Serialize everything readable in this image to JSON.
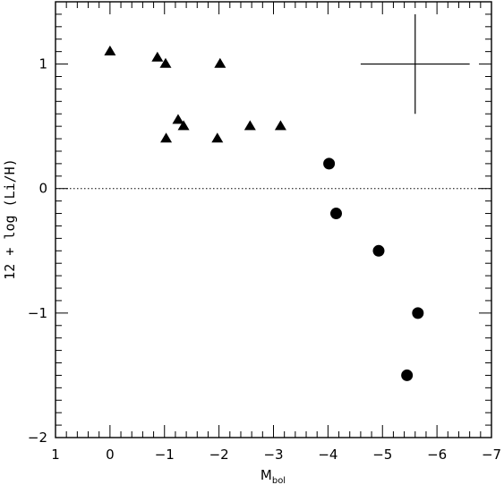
{
  "chart_data": {
    "type": "scatter",
    "xlabel": "M",
    "xlabel_sub": "bol",
    "ylabel": "12 + log (Li/H)",
    "xlim": [
      1,
      -7
    ],
    "ylim": [
      -2,
      1.5
    ],
    "x_ticks": [
      1,
      0,
      -1,
      -2,
      -3,
      -4,
      -5,
      -6,
      -7
    ],
    "x_tick_labels": [
      "1",
      "0",
      "−1",
      "−2",
      "−3",
      "−4",
      "−5",
      "−6",
      "−7"
    ],
    "y_ticks": [
      1,
      0,
      -1,
      -2
    ],
    "y_tick_labels": [
      "1",
      "0",
      "−1",
      "−2"
    ],
    "reference_line": {
      "y": 0,
      "style": "dotted"
    },
    "error_bar": {
      "x": -5.6,
      "y": 1.0,
      "x_err": 1.0,
      "y_err": 0.4
    },
    "series": [
      {
        "marker": "triangle",
        "x": [
          0.0,
          -0.87,
          -1.02,
          -2.02,
          -1.25,
          -1.35,
          -1.03,
          -1.97,
          -2.57,
          -3.13
        ],
        "y": [
          1.1,
          1.05,
          1.0,
          1.0,
          0.55,
          0.5,
          0.4,
          0.4,
          0.5,
          0.5
        ]
      },
      {
        "marker": "circle",
        "x": [
          -4.02,
          -4.15,
          -4.93,
          -5.65,
          -5.45
        ],
        "y": [
          0.2,
          -0.2,
          -0.5,
          -1.0,
          -1.5
        ]
      }
    ]
  }
}
